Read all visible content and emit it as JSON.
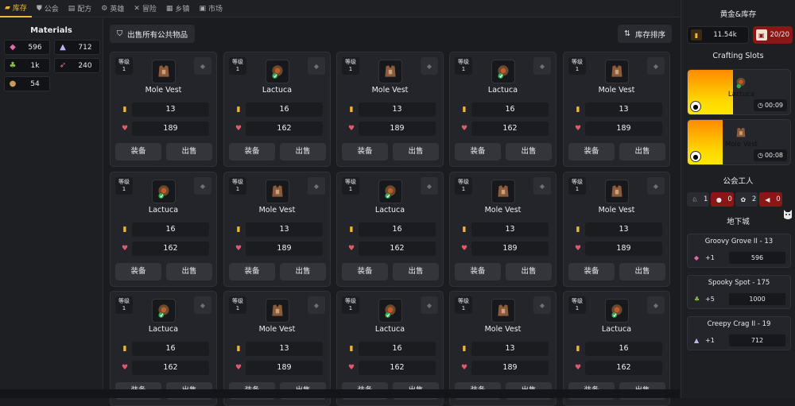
{
  "nav": {
    "tabs": [
      {
        "label": "库存",
        "icon": "inventory-icon",
        "active": true
      },
      {
        "label": "公会",
        "icon": "guild-icon",
        "active": false
      },
      {
        "label": "配方",
        "icon": "recipe-icon",
        "active": false
      },
      {
        "label": "英雄",
        "icon": "hero-icon",
        "active": false
      },
      {
        "label": "冒险",
        "icon": "adventure-icon",
        "active": false
      },
      {
        "label": "乡镇",
        "icon": "town-icon",
        "active": false
      },
      {
        "label": "市场",
        "icon": "market-icon",
        "active": false
      }
    ]
  },
  "materials": {
    "title": "Materials",
    "items": [
      {
        "icon": "pink-leaf-icon",
        "value": "596"
      },
      {
        "icon": "crystal-icon",
        "value": "712"
      },
      {
        "icon": "sprout-icon",
        "value": "1k"
      },
      {
        "icon": "feather-icon",
        "value": "240"
      },
      {
        "icon": "brown-orb-icon",
        "value": "54"
      }
    ]
  },
  "toolbar": {
    "sell_all": "出售所有公共物品",
    "sort": "库存排序"
  },
  "item_labels": {
    "level": "等级",
    "equip": "装备",
    "sell": "出售"
  },
  "items": [
    {
      "name": "Mole Vest",
      "level": "1",
      "gold": "13",
      "health": "189"
    },
    {
      "name": "Lactuca",
      "level": "1",
      "gold": "16",
      "health": "162"
    },
    {
      "name": "Mole Vest",
      "level": "1",
      "gold": "13",
      "health": "189"
    },
    {
      "name": "Lactuca",
      "level": "1",
      "gold": "16",
      "health": "162"
    },
    {
      "name": "Mole Vest",
      "level": "1",
      "gold": "13",
      "health": "189"
    },
    {
      "name": "Lactuca",
      "level": "1",
      "gold": "16",
      "health": "162"
    },
    {
      "name": "Mole Vest",
      "level": "1",
      "gold": "13",
      "health": "189"
    },
    {
      "name": "Lactuca",
      "level": "1",
      "gold": "16",
      "health": "162"
    },
    {
      "name": "Mole Vest",
      "level": "1",
      "gold": "13",
      "health": "189"
    },
    {
      "name": "Mole Vest",
      "level": "1",
      "gold": "13",
      "health": "189"
    },
    {
      "name": "Lactuca",
      "level": "1",
      "gold": "16",
      "health": "162"
    },
    {
      "name": "Mole Vest",
      "level": "1",
      "gold": "13",
      "health": "189"
    },
    {
      "name": "Lactuca",
      "level": "1",
      "gold": "16",
      "health": "162"
    },
    {
      "name": "Mole Vest",
      "level": "1",
      "gold": "13",
      "health": "189"
    },
    {
      "name": "Lactuca",
      "level": "1",
      "gold": "16",
      "health": "162"
    }
  ],
  "right": {
    "gold_title": "黄金&库存",
    "gold_value": "11.54k",
    "inventory_value": "20/20",
    "crafting_title": "Crafting Slots",
    "slots": [
      {
        "name": "Lactuca",
        "time": "00:09",
        "progress": 0.44
      },
      {
        "name": "Mole Vest",
        "time": "00:08",
        "progress": 0.34
      }
    ],
    "workers_title": "公会工人",
    "workers": [
      {
        "icon": "rabbit-icon",
        "value": "1",
        "style": "dark"
      },
      {
        "icon": "mole-icon",
        "value": "0",
        "style": "red"
      },
      {
        "icon": "paw-icon",
        "value": "2",
        "style": "dark"
      },
      {
        "icon": "fish-icon",
        "value": "0",
        "style": "red"
      }
    ],
    "dungeon_title": "地下城",
    "dungeons": [
      {
        "name": "Groovy Grove II - 13",
        "icon": "pink-leaf-icon",
        "plus": "+1",
        "value": "596"
      },
      {
        "name": "Spooky Spot - 175",
        "icon": "sprout-icon",
        "plus": "+5",
        "value": "1000"
      },
      {
        "name": "Creepy Crag II - 19",
        "icon": "crystal-icon",
        "plus": "+1",
        "value": "712"
      }
    ]
  },
  "colors": {
    "accent": "#f2b632",
    "danger": "#8a1616",
    "progress_start": "#ff8a00",
    "progress_end": "#ffe600"
  }
}
